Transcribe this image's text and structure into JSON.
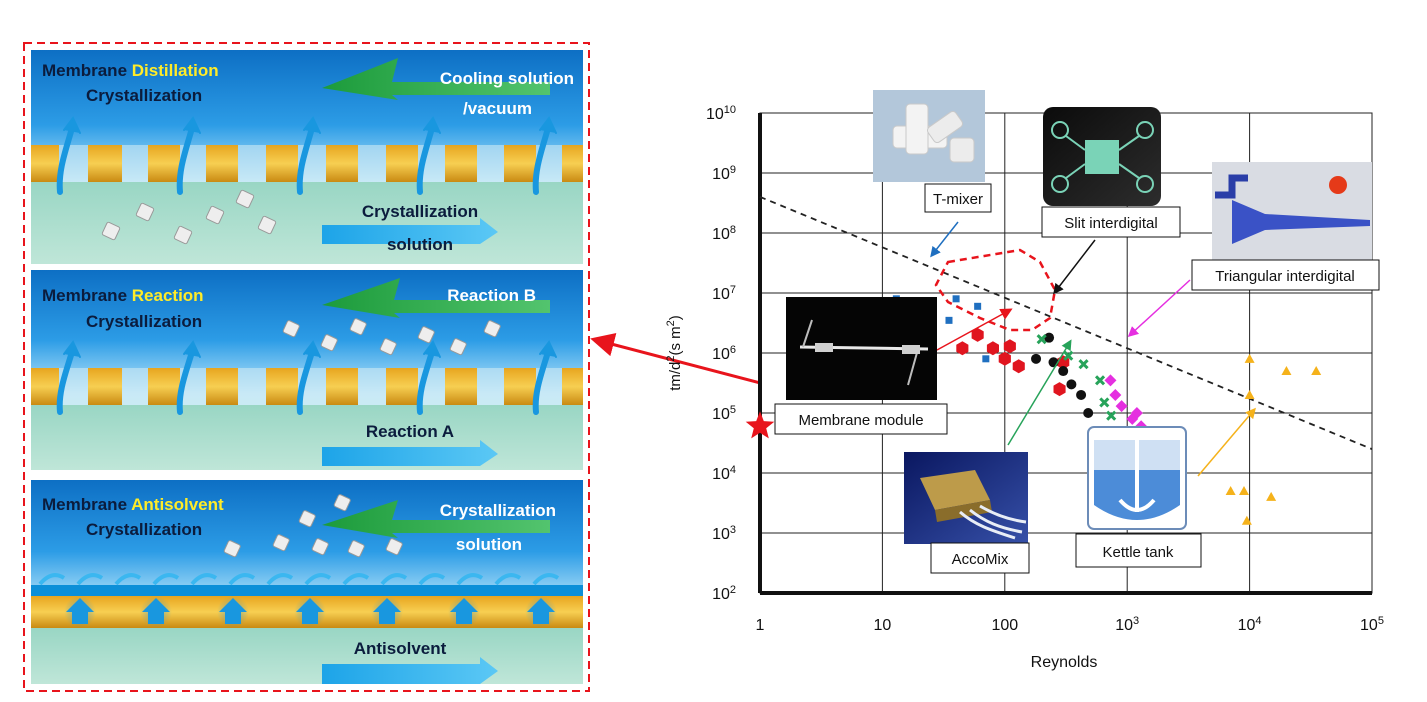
{
  "panels": [
    {
      "title_a": "Membrane",
      "title_b": "Distillation",
      "title_c": "Crystallization",
      "arrow_upper": [
        "Cooling solution",
        "/vacuum"
      ],
      "arrow_lower": [
        "Crystallization",
        "solution"
      ]
    },
    {
      "title_a": "Membrane",
      "title_b": "Reaction",
      "title_c": "Crystallization",
      "arrow_upper": [
        "Reaction B"
      ],
      "arrow_lower": [
        "Reaction A"
      ]
    },
    {
      "title_a": "Membrane",
      "title_b": "Antisolvent",
      "title_c": "Crystallization",
      "arrow_upper": [
        "Crystallization",
        "solution"
      ],
      "arrow_lower": [
        "Antisolvent"
      ]
    }
  ],
  "chart": {
    "xlabel": "Reynolds",
    "ylabel_parts": [
      "tm/d",
      "2",
      "(s m",
      "2",
      ")"
    ],
    "x_ticks": [
      {
        "base": "1",
        "exp": "",
        "value": 1
      },
      {
        "base": "10",
        "exp": "",
        "value": 10
      },
      {
        "base": "100",
        "exp": "",
        "value": 100
      },
      {
        "base": "10",
        "exp": "3",
        "value": 1000
      },
      {
        "base": "10",
        "exp": "4",
        "value": 10000
      },
      {
        "base": "10",
        "exp": "5",
        "value": 100000
      }
    ],
    "y_ticks": [
      {
        "base": "10",
        "exp": "10",
        "value": 10000000000
      },
      {
        "base": "10",
        "exp": "9",
        "value": 1000000000
      },
      {
        "base": "10",
        "exp": "8",
        "value": 100000000
      },
      {
        "base": "10",
        "exp": "7",
        "value": 10000000
      },
      {
        "base": "10",
        "exp": "6",
        "value": 1000000
      },
      {
        "base": "10",
        "exp": "5",
        "value": 100000
      },
      {
        "base": "10",
        "exp": "4",
        "value": 10000
      },
      {
        "base": "10",
        "exp": "3",
        "value": 1000
      },
      {
        "base": "10",
        "exp": "2",
        "value": 100
      }
    ],
    "labels": {
      "t_mixer": "T-mixer",
      "slit": "Slit interdigital",
      "triangular": "Triangular interdigital",
      "membrane_module": "Membrane module",
      "accomix": "AccoMix",
      "kettle": "Kettle tank"
    }
  },
  "chart_data": {
    "type": "scatter",
    "x_scale": "log",
    "y_scale": "log",
    "xlim": [
      1,
      100000
    ],
    "ylim": [
      100,
      10000000000
    ],
    "grid": true,
    "series": [
      {
        "color": "#1f6fc0",
        "marker": "square",
        "points": [
          [
            13,
            8000000
          ],
          [
            18,
            6500000
          ],
          [
            22,
            3000000
          ],
          [
            35,
            3500000
          ],
          [
            40,
            8000000
          ],
          [
            60,
            6000000
          ],
          [
            70,
            800000
          ]
        ]
      },
      {
        "color": "#e0151f",
        "marker": "hexagon",
        "points": [
          [
            45,
            1200000
          ],
          [
            60,
            2000000
          ],
          [
            80,
            1200000
          ],
          [
            100,
            800000
          ],
          [
            110,
            1300000
          ],
          [
            130,
            600000
          ],
          [
            280,
            250000
          ],
          [
            300,
            700000
          ]
        ]
      },
      {
        "color": "#111111",
        "marker": "circle",
        "points": [
          [
            180,
            800000
          ],
          [
            230,
            1800000
          ],
          [
            250,
            700000
          ],
          [
            300,
            500000
          ],
          [
            350,
            300000
          ],
          [
            420,
            200000
          ],
          [
            480,
            100000
          ]
        ]
      },
      {
        "color": "#27a35a",
        "marker": "cross",
        "points": [
          [
            200,
            1700000
          ],
          [
            330,
            900000
          ],
          [
            440,
            650000
          ],
          [
            600,
            350000
          ],
          [
            650,
            150000
          ],
          [
            740,
            90000
          ]
        ]
      },
      {
        "color": "#e52fe0",
        "marker": "diamond",
        "points": [
          [
            730,
            350000
          ],
          [
            800,
            200000
          ],
          [
            900,
            130000
          ],
          [
            1100,
            80000
          ],
          [
            1200,
            100000
          ],
          [
            1300,
            60000
          ]
        ]
      },
      {
        "color": "#f5b21b",
        "marker": "triangle",
        "points": [
          [
            7000,
            5000
          ],
          [
            9000,
            5000
          ],
          [
            9500,
            1600
          ],
          [
            10000,
            800000
          ],
          [
            10000,
            200000
          ],
          [
            15000,
            4000
          ],
          [
            20000,
            500000
          ],
          [
            35000,
            500000
          ]
        ]
      }
    ],
    "trendline": {
      "style": "dashed",
      "points": [
        [
          1,
          400000000
        ],
        [
          100000,
          25000
        ]
      ]
    },
    "highlight": {
      "marker": "star",
      "color": "#e8141c",
      "point": [
        1,
        60000
      ]
    }
  }
}
